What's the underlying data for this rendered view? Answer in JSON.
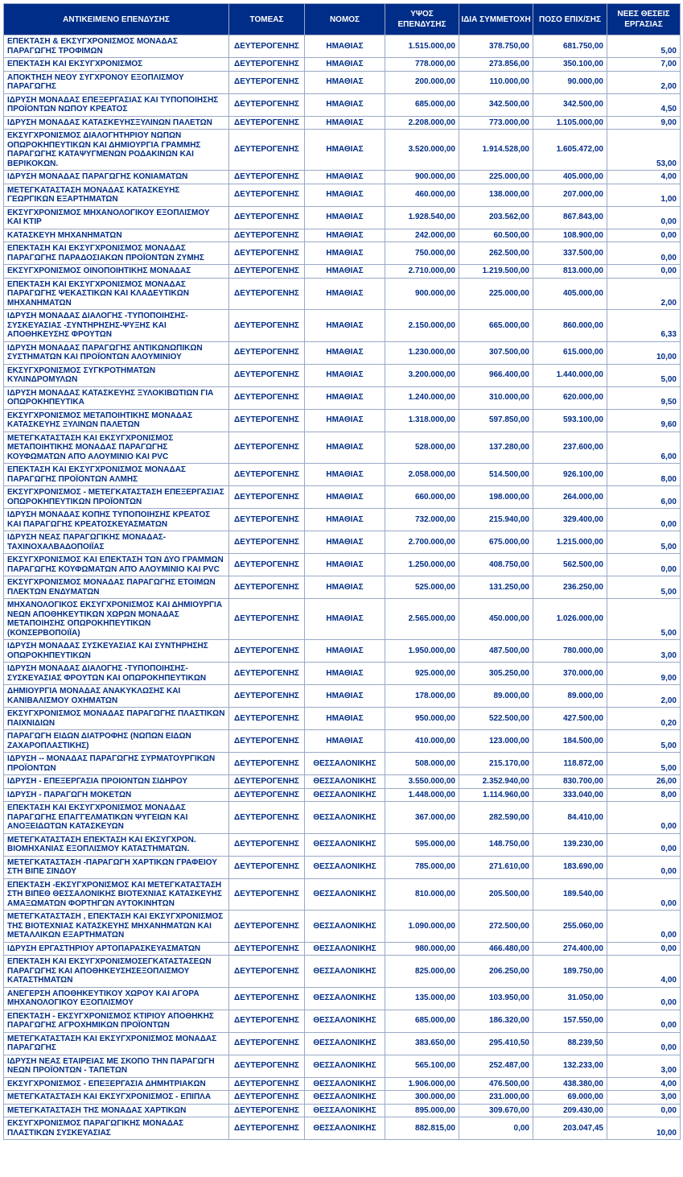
{
  "table": {
    "header_bg": "#002d87",
    "header_fg": "#ffffff",
    "cell_fg": "#002d87",
    "border_color": "#9aa9c7",
    "font_family": "Arial",
    "header_fontsize": 10,
    "cell_fontsize": 10,
    "columns": [
      "ΑΝΤΙΚΕΙΜΕΝΟ ΕΠΕΝΔΥΣΗΣ",
      "ΤΟΜΕΑΣ",
      "ΝΟΜΟΣ",
      "ΥΨΟΣ ΕΠΕΝΔΥΣΗΣ",
      "ΙΔΙΑ ΣΥΜΜΕΤΟΧΗ",
      "ΠΟΣΟ ΕΠΙΧ/ΣΗΣ",
      "ΝΕΕΣ ΘΕΣΕΙΣ ΕΡΓΑΣΙΑΣ"
    ],
    "column_align": [
      "left",
      "center",
      "center",
      "right",
      "right",
      "right",
      "right"
    ],
    "rows": [
      [
        "ΕΠΕΚΤΑΣΗ & ΕΚΣΥΓΧΡΟΝΙΣΜΟΣ ΜΟΝΑΔΑΣ ΠΑΡΑΓΩΓΗΣ ΤΡΟΦΙΜΩΝ",
        "ΔΕΥΤΕΡΟΓΕΝΗΣ",
        "ΗΜΑΘΙΑΣ",
        "1.515.000,00",
        "378.750,00",
        "681.750,00",
        "5,00"
      ],
      [
        "ΕΠΕΚΤΑΣΗ ΚΑΙ ΕΚΣΥΓΧΡΟΝΙΣΜΟΣ",
        "ΔΕΥΤΕΡΟΓΕΝΗΣ",
        "ΗΜΑΘΙΑΣ",
        "778.000,00",
        "273.856,00",
        "350.100,00",
        "7,00"
      ],
      [
        "ΑΠΟΚΤΗΣΗ ΝΕΟΥ ΣΥΓΧΡΟΝΟΥ ΕΞΟΠΛΙΣΜΟΥ ΠΑΡΑΓΩΓΗΣ",
        "ΔΕΥΤΕΡΟΓΕΝΗΣ",
        "ΗΜΑΘΙΑΣ",
        "200.000,00",
        "110.000,00",
        "90.000,00",
        "2,00"
      ],
      [
        "ΙΔΡΥΣΗ ΜΟΝΑΔΑΣ ΕΠΕΞΕΡΓΑΣΙΑΣ ΚΑΙ ΤΥΠΟΠΟΙΗΣΗΣ ΠΡΟΪΟΝΤΩΝ ΝΩΠΟΥ ΚΡΕΑΤΟΣ",
        "ΔΕΥΤΕΡΟΓΕΝΗΣ",
        "ΗΜΑΘΙΑΣ",
        "685.000,00",
        "342.500,00",
        "342.500,00",
        "4,50"
      ],
      [
        "ΙΔΡΥΣΗ ΜΟΝΑΔΑΣ ΚΑΤΑΣΚΕΥΗΣΞΥΛΙΝΩΝ ΠΑΛΕΤΩΝ",
        "ΔΕΥΤΕΡΟΓΕΝΗΣ",
        "ΗΜΑΘΙΑΣ",
        "2.208.000,00",
        "773.000,00",
        "1.105.000,00",
        "9,00"
      ],
      [
        "ΕΚΣΥΓΧΡΟΝΙΣΜΟΣ  ΔΙΑΛΟΓΗΤΗΡΙΟΥ  ΝΩΠΩΝ ΟΠΩΡΟΚΗΠΕΥΤΙΚΩΝ ΚΑΙ ΔΗΜΙΟΥΡΓΙΑ  ΓΡΑΜΜΗΣ ΠΑΡΑΓΩΓΗΣ ΚΑΤΑΨΥΓΜΕΝΩΝ ΡΟΔΑΚΙΝΩΝ ΚΑΙ ΒΕΡΙΚΟΚΩΝ.",
        "ΔΕΥΤΕΡΟΓΕΝΗΣ",
        "ΗΜΑΘΙΑΣ",
        "3.520.000,00",
        "1.914.528,00",
        "1.605.472,00",
        "53,00"
      ],
      [
        "ΙΔΡΥΣΗ ΜΟΝΑΔΑΣ ΠΑΡΑΓΩΓΗΣ ΚΟΝΙΑΜΑΤΩΝ",
        "ΔΕΥΤΕΡΟΓΕΝΗΣ",
        "ΗΜΑΘΙΑΣ",
        "900.000,00",
        "225.000,00",
        "405.000,00",
        "4,00"
      ],
      [
        "ΜΕΤΕΓΚΑΤΑΣΤΑΣΗ ΜΟΝΑΔΑΣ ΚΑΤΑΣΚΕΥΗΣ ΓΕΩΡΓΙΚΩΝ ΕΞΑΡΤΗΜΑΤΩΝ",
        "ΔΕΥΤΕΡΟΓΕΝΗΣ",
        "ΗΜΑΘΙΑΣ",
        "460.000,00",
        "138.000,00",
        "207.000,00",
        "1,00"
      ],
      [
        "ΕΚΣΥΓΧΡΟΝΙΣΜΟΣ ΜΗΧΑΝΟΛΟΓΙΚΟΥ ΕΞΟΠΛΙΣΜΟΥ ΚΑΙ ΚΤΙΡ",
        "ΔΕΥΤΕΡΟΓΕΝΗΣ",
        "ΗΜΑΘΙΑΣ",
        "1.928.540,00",
        "203.562,00",
        "867.843,00",
        "0,00"
      ],
      [
        "ΚΑΤΑΣΚΕΥΗ ΜΗΧΑΝΗΜΑΤΩΝ",
        "ΔΕΥΤΕΡΟΓΕΝΗΣ",
        "ΗΜΑΘΙΑΣ",
        "242.000,00",
        "60.500,00",
        "108.900,00",
        "0,00"
      ],
      [
        "ΕΠΕΚΤΑΣΗ  ΚΑΙ ΕΚΣΥΓΧΡΟΝΙΣΜΟΣ ΜΟΝΑΔΑΣ ΠΑΡΑΓΩΓΗΣ ΠΑΡΑΔΟΣΙΑΚΩΝ ΠΡΟΪΟΝΤΩΝ ΖΥΜΗΣ",
        "ΔΕΥΤΕΡΟΓΕΝΗΣ",
        "ΗΜΑΘΙΑΣ",
        "750.000,00",
        "262.500,00",
        "337.500,00",
        "0,00"
      ],
      [
        "ΕΚΣΥΓΧΡΟΝΙΣΜΟΣ ΟΙΝΟΠΟΙΗΤΙΚΗΣ  ΜΟΝΑΔΑΣ",
        "ΔΕΥΤΕΡΟΓΕΝΗΣ",
        "ΗΜΑΘΙΑΣ",
        "2.710.000,00",
        "1.219.500,00",
        "813.000,00",
        "0,00"
      ],
      [
        " ΕΠΕΚΤΑΣΗ  ΚΑΙ ΕΚΣΥΓΧΡΟΝΙΣΜΟΣ ΜΟΝΑΔΑΣ ΠΑΡΑΓΩΓΗΣ  ΨΕΚΑΣΤΙΚΩΝ ΚΑΙ  ΚΛΑΔΕΥΤΙΚΩΝ ΜΗΧΑΝΗΜΑΤΩΝ",
        "ΔΕΥΤΕΡΟΓΕΝΗΣ",
        "ΗΜΑΘΙΑΣ",
        "900.000,00",
        "225.000,00",
        "405.000,00",
        "2,00"
      ],
      [
        "ΙΔΡΥΣΗ ΜΟΝΑΔΑΣ ΔΙΑΛΟΓΗΣ -ΤΥΠΟΠΟΙΗΣΗΣ-ΣΥΣΚΕΥΑΣΙΑΣ -ΣΥΝΤΗΡΗΣΗΣ-ΨΥΞΗΣ ΚΑΙ ΑΠΟΘΗΚΕΥΣΗΣ ΦΡΟΥΤΩΝ",
        "ΔΕΥΤΕΡΟΓΕΝΗΣ",
        "ΗΜΑΘΙΑΣ",
        "2.150.000,00",
        "665.000,00",
        "860.000,00",
        "6,33"
      ],
      [
        "ΙΔΡΥΣΗ ΜΟΝΑΔΑΣ ΠΑΡΑΓΩΓΗΣ ΑΝΤΙΚΩΝΩΠΙΚΩΝ ΣΥΣΤΗΜΑΤΩΝ  ΚΑΙ ΠΡΟΪΟΝΤΩΝ ΑΛΟΥΜΙΝΙΟΥ",
        "ΔΕΥΤΕΡΟΓΕΝΗΣ",
        "ΗΜΑΘΙΑΣ",
        "1.230.000,00",
        "307.500,00",
        "615.000,00",
        "10,00"
      ],
      [
        "ΕΚΣΥΓΧΡΟΝΙΣΜΟΣ ΣΥΓΚΡΟΤΗΜΑΤΩΝ ΚΥΛΙΝΔΡΟΜΥΛΩΝ",
        "ΔΕΥΤΕΡΟΓΕΝΗΣ",
        "ΗΜΑΘΙΑΣ",
        "3.200.000,00",
        "966.400,00",
        "1.440.000,00",
        "5,00"
      ],
      [
        "ΙΔΡΥΣΗ ΜΟΝΑΔΑΣ ΚΑΤΑΣΚΕΥΗΣ ΞΥΛΟΚΙΒΩΤΙΩΝ ΓΙΑ ΟΠΩΡΟΚΗΠΕΥΤΙΚΑ",
        "ΔΕΥΤΕΡΟΓΕΝΗΣ",
        "ΗΜΑΘΙΑΣ",
        "1.240.000,00",
        "310.000,00",
        "620.000,00",
        "9,50"
      ],
      [
        "ΕΚΣΥΓΧΡΟΝΙΣΜΟΣ ΜΕΤΑΠΟΙΗΤΙΚΗΣ ΜΟΝΑΔΑΣ ΚΑΤΑΣΚΕΥΗΣ ΞΥΛΙΝΩΝ ΠΑΛΕΤΩΝ",
        "ΔΕΥΤΕΡΟΓΕΝΗΣ",
        "ΗΜΑΘΙΑΣ",
        "1.318.000,00",
        "597.850,00",
        "593.100,00",
        "9,60"
      ],
      [
        "ΜΕΤΕΓΚΑΤΑΣΤΑΣΗ ΚΑΙ ΕΚΣΥΓΧΡΟΝΙΣΜΟΣ ΜΕΤΑΠΟΙΗΤΙΚΗΣ ΜΟΝΑΔΑΣ ΠΑΡΑΓΩΓΗΣ ΚΟΥΦΩΜΑΤΩΝ ΑΠΌ ΑΛΟΥΜΙΝΙΟ ΚΑΙ PVC",
        "ΔΕΥΤΕΡΟΓΕΝΗΣ",
        "ΗΜΑΘΙΑΣ",
        "528.000,00",
        "137.280,00",
        "237.600,00",
        "6,00"
      ],
      [
        "ΕΠΕΚΤΑΣΗ ΚΑΙ ΕΚΣΥΓΧΡΟΝΙΣΜΟΣ ΜΟΝΑΔΑΣ ΠΑΡΑΓΩΓΗΣ ΠΡΟΪΟΝΤΩΝ ΑΛΜΗΣ",
        "ΔΕΥΤΕΡΟΓΕΝΗΣ",
        "ΗΜΑΘΙΑΣ",
        "2.058.000,00",
        "514.500,00",
        "926.100,00",
        "8,00"
      ],
      [
        "ΕΚΣΥΓΧΡΟΝΙΣΜΟΣ - ΜΕΤΕΓΚΑΤΑΣΤΑΣΗ ΕΠΕΞΕΡΓΑΣΙΑΣ ΟΠΩΡΟΚΗΠΕΥΤΙΚΩΝ ΠΡΟΪΟΝΤΩΝ",
        "ΔΕΥΤΕΡΟΓΕΝΗΣ",
        "ΗΜΑΘΙΑΣ",
        "660.000,00",
        "198.000,00",
        "264.000,00",
        "6,00"
      ],
      [
        "ΙΔΡΥΣΗ ΜΟΝΑΔΑΣ ΚΟΠΗΣ ΤΥΠΟΠΟΙΗΣΗΣ ΚΡΕΑΤΟΣ ΚΑΙ ΠΑΡΑΓΩΓΗΣ ΚΡΕΑΤΟΣΚΕΥΑΣΜΑΤΩΝ",
        "ΔΕΥΤΕΡΟΓΕΝΗΣ",
        "ΗΜΑΘΙΑΣ",
        "732.000,00",
        "215.940,00",
        "329.400,00",
        "0,00"
      ],
      [
        "ΙΔΡΥΣΗ ΝΕΑΣ ΠΑΡΑΓΩΓΙΚΗΣ ΜΟΝΑΔΑΣ-ΤΑΧΙΝΟΧΑΛΒΑΔΟΠΟΙΪΑΣ",
        "ΔΕΥΤΕΡΟΓΕΝΗΣ",
        "ΗΜΑΘΙΑΣ",
        "2.700.000,00",
        "675.000,00",
        "1.215.000,00",
        "5,00"
      ],
      [
        "ΕΚΣΥΓΧΡΟΝΙΣΜΟΣ ΚΑΙ ΕΠΕΚΤΑΣΗ ΤΩΝ ΔΥΟ ΓΡΑΜΜΩΝ ΠΑΡΑΓΩΓΗΣ ΚΟΥΦΩΜΑΤΩΝ  ΑΠΌ ΑΛΟΥΜΙΝΙΟ ΚΑΙ  PVC",
        "ΔΕΥΤΕΡΟΓΕΝΗΣ",
        "ΗΜΑΘΙΑΣ",
        "1.250.000,00",
        "408.750,00",
        "562.500,00",
        "0,00"
      ],
      [
        "ΕΚΣΥΓΧΡΟΝΙΣΜΟΣ ΜΟΝΑΔΑΣ ΠΑΡΑΓΩΓΗΣ ΕΤΟΙΜΩΝ ΠΛΕΚΤΩΝ ΕΝΔΥΜΑΤΩΝ",
        "ΔΕΥΤΕΡΟΓΕΝΗΣ",
        "ΗΜΑΘΙΑΣ",
        "525.000,00",
        "131.250,00",
        "236.250,00",
        "5,00"
      ],
      [
        "ΜΗΧΑΝΟΛΟΓΙΚΟΣ ΕΚΣΥΓΧΡΟΝΙΣΜΟΣ ΚΑΙ ΔΗΜΙΟΥΡΓΙΑ ΝΕΩΝ ΑΠΟΘΗΚΕΥΤΙΚΩΝ ΧΩΡΩΝ ΜΟΝΑΔΑΣ ΜΕΤΑΠΟΙΗΣΗΣ ΟΠΩΡΟΚΗΠΕΥΤΙΚΩΝ (ΚΟΝΣΕΡΒΟΠΟΙΪΑ)",
        "ΔΕΥΤΕΡΟΓΕΝΗΣ",
        "ΗΜΑΘΙΑΣ",
        "2.565.000,00",
        "450.000,00",
        "1.026.000,00",
        "5,00"
      ],
      [
        "ΙΔΡΥΣΗ ΜΟΝΑΔΑΣ ΣΥΣΚΕΥΑΣΙΑΣ ΚΑΙ ΣΥΝΤΗΡΗΣΗΣ ΟΠΩΡΟΚΗΠΕΥΤΙΚΩΝ",
        "ΔΕΥΤΕΡΟΓΕΝΗΣ",
        "ΗΜΑΘΙΑΣ",
        "1.950.000,00",
        "487.500,00",
        "780.000,00",
        "3,00"
      ],
      [
        "ΙΔΡΥΣΗ ΜΟΝΑΔΑΣ ΔΙΑΛΟΓΗΣ -ΤΥΠΟΠΟΙΗΣΗΣ-ΣΥΣΚΕΥΑΣΙΑΣ ΦΡΟΥΤΩΝ ΚΑΙ ΟΠΩΡΟΚΗΠΕΥΤΙΚΩΝ",
        "ΔΕΥΤΕΡΟΓΕΝΗΣ",
        "ΗΜΑΘΙΑΣ",
        "925.000,00",
        "305.250,00",
        "370.000,00",
        "9,00"
      ],
      [
        "ΔΗΜΙΟΥΡΓΙΑ ΜΟΝΑΔΑΣ ΑΝΑΚΥΚΛΩΣΗΣ ΚΑΙ ΚΑΝΙΒΑΛΙΣΜΟΥ ΟΧΗΜΑΤΩΝ",
        "ΔΕΥΤΕΡΟΓΕΝΗΣ",
        "ΗΜΑΘΙΑΣ",
        "178.000,00",
        "89.000,00",
        "89.000,00",
        "2,00"
      ],
      [
        "ΕΚΣΥΓΧΡΟΝΙΣΜΟΣ ΜΟΝΑΔΑΣ ΠΑΡΑΓΩΓΗΣ ΠΛΑΣΤΙΚΩΝ ΠΑΙΧΝΙΔΙΩΝ",
        "ΔΕΥΤΕΡΟΓΕΝΗΣ",
        "ΗΜΑΘΙΑΣ",
        "950.000,00",
        "522.500,00",
        "427.500,00",
        "0,20"
      ],
      [
        "ΠΑΡΑΓΩΓΗ  ΕΙΔΩΝ ΔΙΑΤΡΟΦΗΣ (ΝΩΠΩΝ ΕΙΔΩΝ ΖΑΧΑΡΟΠΛΑΣΤΙΚΗΣ)",
        "ΔΕΥΤΕΡΟΓΕΝΗΣ",
        "ΗΜΑΘΙΑΣ",
        "410.000,00",
        "123.000,00",
        "184.500,00",
        "5,00"
      ],
      [
        "ΙΔΡΥΣΗ -- ΜΟΝΑΔΑΣ ΠΑΡΑΓΩΓΗΣ ΣΥΡΜΑΤΟΥΡΓΙΚΩΝ ΠΡΟΪΟΝΤΩΝ",
        "ΔΕΥΤΕΡΟΓΕΝΗΣ",
        "ΘΕΣΣΑΛΟΝΙΚΗΣ",
        "508.000,00",
        "215.170,00",
        "118.872,00",
        "5,00"
      ],
      [
        "ΙΔΡΥΣΗ - ΕΠΕΞΕΡΓΑΣΙΑ ΠΡΟΙΟΝΤΩΝ ΣΙΔΗΡΟΥ",
        "ΔΕΥΤΕΡΟΓΕΝΗΣ",
        "ΘΕΣΣΑΛΟΝΙΚΗΣ",
        "3.550.000,00",
        "2.352.940,00",
        "830.700,00",
        "26,00"
      ],
      [
        "ΙΔΡΥΣΗ - ΠΑΡΑΓΩΓΗ ΜΟΚΕΤΩΝ",
        "ΔΕΥΤΕΡΟΓΕΝΗΣ",
        "ΘΕΣΣΑΛΟΝΙΚΗΣ",
        "1.448.000,00",
        "1.114.960,00",
        "333.040,00",
        "8,00"
      ],
      [
        "ΕΠΕΚΤΑΣΗ ΚΑΙ ΕΚΣΥΓΧΡΟΝΙΣΜΟΣ ΜΟΝΑΔΑΣ  ΠΑΡΑΓΩΓΗΣ ΕΠΑΓΓΕΛΜΑΤΙΚΩΝ ΨΥΓΕΙΩΝ  ΚΑΙ ΑΝΟΞΕΙΔΩΤΩΝ ΚΑΤΑΣΚΕΥΩΝ",
        "ΔΕΥΤΕΡΟΓΕΝΗΣ",
        "ΘΕΣΣΑΛΟΝΙΚΗΣ",
        "367.000,00",
        "282.590,00",
        "84.410,00",
        "0,00"
      ],
      [
        "ΜΕΤΕΓΚΑΤΑΣΤΑΣΗ  ΕΠΕΚΤΑΣΗ ΚΑΙ ΕΚΣΥΓΧΡΟΝ. ΒΙΟΜΗΧΑΝΙΑΣ ΕΞΟΠΛΙΣΜΟΥ ΚΑΤΑΣΤΗΜΑΤΩΝ.",
        "ΔΕΥΤΕΡΟΓΕΝΗΣ",
        "ΘΕΣΣΑΛΟΝΙΚΗΣ",
        "595.000,00",
        "148.750,00",
        "139.230,00",
        "0,00"
      ],
      [
        "ΜΕΤΕΓΚΑΤΑΣΤΑΣΗ -ΠΑΡΑΓΩΓΗ ΧΑΡΤΙΚΩΝ ΓΡΑΦΕΙΟΥ ΣΤΗ ΒΙΠΕ ΣΙΝΔΟΥ",
        "ΔΕΥΤΕΡΟΓΕΝΗΣ",
        "ΘΕΣΣΑΛΟΝΙΚΗΣ",
        "785.000,00",
        "271.610,00",
        "183.690,00",
        "0,00"
      ],
      [
        "ΕΠΕΚΤΑΣΗ -ΕΚΣΥΓΧΡΟΝΙΣΜΟΣ ΚΑΙ ΜΕΤΕΓΚΑΤΑΣΤΑΣΗ  ΣΤΗ ΒΙΠΕΘ ΘΕΣΣΑΛΟΝΙΚΗΣ ΒΙΟΤΕΧΝΙΑΣ ΚΑΤΑΣΚΕΥΗΣ ΑΜΑΞΩΜΑΤΩΝ ΦΟΡΤΗΓΩΝ ΑΥΤΟΚΙΝΗΤΩΝ",
        "ΔΕΥΤΕΡΟΓΕΝΗΣ",
        "ΘΕΣΣΑΛΟΝΙΚΗΣ",
        "810.000,00",
        "205.500,00",
        "189.540,00",
        "0,00"
      ],
      [
        "ΜΕΤΕΓΚΑΤΑΣΤΑΣΗ , ΕΠΕΚΤΑΣΗ ΚΑΙ ΕΚΣΥΓΧΡΟΝΙΣΜΟΣ ΤΗΣ ΒΙΟΤΕΧΝΙΑΣ ΚΑΤΑΣΚΕΥΗΣ ΜΗΧΑΝΗΜΑΤΩΝ ΚΑΙ ΜΕΤΑΛΛΙΚΩΝ ΕΞΑΡΤΗΜΑΤΩΝ",
        "ΔΕΥΤΕΡΟΓΕΝΗΣ",
        "ΘΕΣΣΑΛΟΝΙΚΗΣ",
        "1.090.000,00",
        "272.500,00",
        "255.060,00",
        "0,00"
      ],
      [
        "ΙΔΡΥΣΗ ΕΡΓΑΣΤΗΡΙΟΥ ΑΡΤΟΠΑΡΑΣΚΕΥΑΣΜΑΤΩΝ",
        "ΔΕΥΤΕΡΟΓΕΝΗΣ",
        "ΘΕΣΣΑΛΟΝΙΚΗΣ",
        "980.000,00",
        "466.480,00",
        "274.400,00",
        "0,00"
      ],
      [
        "ΕΠΕΚΤΑΣΗ ΚΑΙ ΕΚΣΥΓΧΡΟΝΙΣΜΟΣΕΓΚΑΤΑΣΤΑΣΕΩΝ ΠΑΡΑΓΩΓΗΣ ΚΑΙ ΑΠΟΘΗΚΕΥΣΗΣΕΞΟΠΛΙΣΜΟΥ ΚΑΤΑΣΤΗΜΑΤΩΝ",
        "ΔΕΥΤΕΡΟΓΕΝΗΣ",
        "ΘΕΣΣΑΛΟΝΙΚΗΣ",
        "825.000,00",
        "206.250,00",
        "189.750,00",
        "4,00"
      ],
      [
        "ΑΝΕΓΕΡΣΗ ΑΠΟΘΗΚΕΥΤΙΚΟΥ ΧΩΡΟΥ ΚΑΙ ΑΓΟΡΑ ΜΗΧΑΝΟΛΟΓΙΚΟΥ ΕΞΟΠΛΙΣΜΟΥ",
        "ΔΕΥΤΕΡΟΓΕΝΗΣ",
        "ΘΕΣΣΑΛΟΝΙΚΗΣ",
        "135.000,00",
        "103.950,00",
        "31.050,00",
        "0,00"
      ],
      [
        "ΕΠΕΚΤΑΣΗ - ΕΚΣΥΓΧΡΟΝΙΣΜΟΣ ΚΤΙΡΙΟΥ  ΑΠΟΘΗΚΗΣ ΠΑΡΑΓΩΓΗΣ ΑΓΡΟΧΗΜΙΚΩΝ ΠΡΟΪΟΝΤΩΝ",
        "ΔΕΥΤΕΡΟΓΕΝΗΣ",
        "ΘΕΣΣΑΛΟΝΙΚΗΣ",
        "685.000,00",
        "186.320,00",
        "157.550,00",
        "0,00"
      ],
      [
        "ΜΕΤΕΓΚΑΤΑΣΤΑΣΗ ΚΑΙ ΕΚΣΥΓΧΡΟΝΙΣΜΟΣ ΜΟΝΑΔΑΣ ΠΑΡΑΓΩΓΗΣ",
        "ΔΕΥΤΕΡΟΓΕΝΗΣ",
        "ΘΕΣΣΑΛΟΝΙΚΗΣ",
        "383.650,00",
        "295.410,50",
        "88.239,50",
        "0,00"
      ],
      [
        "ΙΔΡΥΣΗ ΝΕΑΣ ΕΤΑΙΡΕΙΑΣ ΜΕ ΣΚΟΠΟ ΤΗΝ ΠΑΡΑΓΩΓΗ ΝΕΩΝ ΠΡΟΪΟΝΤΩΝ - ΤΑΠΕΤΩΝ",
        "ΔΕΥΤΕΡΟΓΕΝΗΣ",
        "ΘΕΣΣΑΛΟΝΙΚΗΣ",
        "565.100,00",
        "252.487,00",
        "132.233,00",
        "3,00"
      ],
      [
        "ΕΚΣΥΓΧΡΟΝΙΣΜΟΣ - ΕΠΕΞΕΡΓΑΣΙΑ ΔΗΜΗΤΡΙΑΚΩΝ",
        "ΔΕΥΤΕΡΟΓΕΝΗΣ",
        "ΘΕΣΣΑΛΟΝΙΚΗΣ",
        "1.906.000,00",
        "476.500,00",
        "438.380,00",
        "4,00"
      ],
      [
        "ΜΕΤΕΓΚΑΤΑΣΤΑΣΗ ΚΑΙ ΕΚΣΥΓΧΡΟΝΙΣΜΟΣ - ΕΠΙΠΛΑ",
        "ΔΕΥΤΕΡΟΓΕΝΗΣ",
        "ΘΕΣΣΑΛΟΝΙΚΗΣ",
        "300.000,00",
        "231.000,00",
        "69.000,00",
        "3,00"
      ],
      [
        "ΜΕΤΕΓΚΑΤΑΣΤΑΣΗ ΤΗΣ ΜΟΝΑΔΑΣ ΧΑΡΤΙΚΩΝ",
        "ΔΕΥΤΕΡΟΓΕΝΗΣ",
        "ΘΕΣΣΑΛΟΝΙΚΗΣ",
        "895.000,00",
        "309.670,00",
        "209.430,00",
        "0,00"
      ],
      [
        "ΕΚΣΥΓΧΡΟΝΙΣΜΟΣ ΠΑΡΑΓΩΓΙΚΗΣ ΜΟΝΑΔΑΣ ΠΛΑΣΤΙΚΩΝ ΣΥΣΚΕΥΑΣΙΑΣ",
        "ΔΕΥΤΕΡΟΓΕΝΗΣ",
        "ΘΕΣΣΑΛΟΝΙΚΗΣ",
        "882.815,00",
        "0,00",
        "203.047,45",
        "10,00"
      ]
    ]
  }
}
